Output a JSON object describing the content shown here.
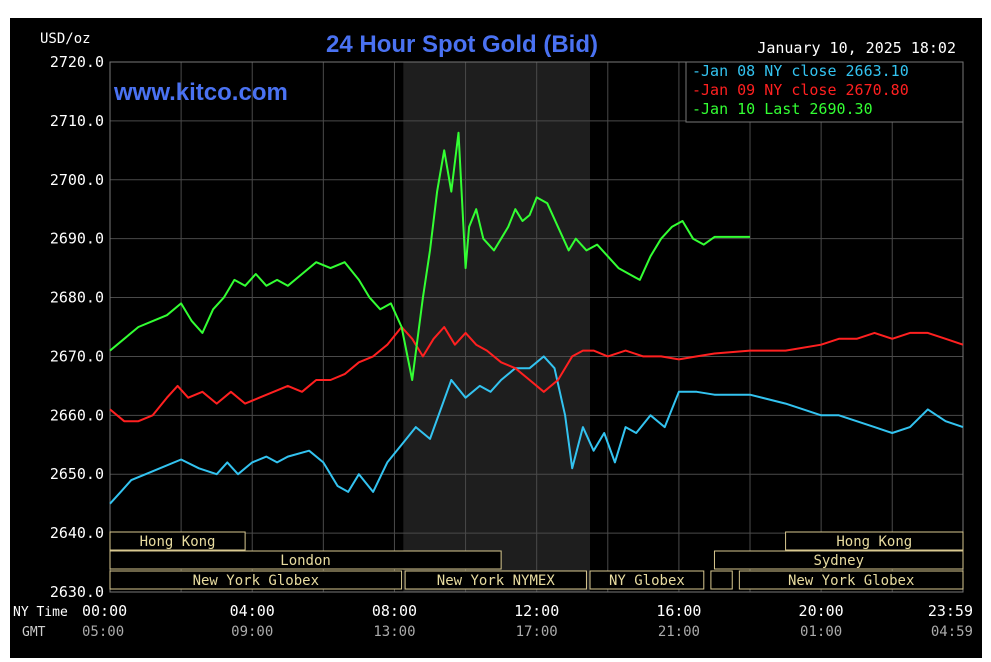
{
  "chart_data": {
    "type": "line",
    "title": "24 Hour Spot Gold (Bid)",
    "unit_label": "USD/oz",
    "watermark": "www.kitco.com",
    "timestamp": "January 10, 2025 18:02",
    "ylim": [
      2630,
      2720
    ],
    "y_ticks": [
      "2720.0",
      "2710.0",
      "2700.0",
      "2690.0",
      "2680.0",
      "2670.0",
      "2660.0",
      "2650.0",
      "2640.0",
      "2630.0"
    ],
    "x_row_labels": {
      "ny": "NY Time",
      "gmt": "GMT"
    },
    "x_ticks_ny": [
      "00:00",
      "04:00",
      "08:00",
      "12:00",
      "16:00",
      "20:00",
      "23:59"
    ],
    "x_ticks_gmt": [
      "05:00",
      "09:00",
      "13:00",
      "17:00",
      "21:00",
      "01:00",
      "04:59"
    ],
    "x_unit": "hours since 00:00 NY time",
    "shaded_window": [
      8.25,
      13.5
    ],
    "legend": [
      {
        "text": "Jan 08 NY close 2663.10",
        "color": "#33c3f0"
      },
      {
        "text": "Jan 09 NY close 2670.80",
        "color": "#ff2020"
      },
      {
        "text": "Jan 10 Last 2690.30",
        "color": "#33ff33"
      }
    ],
    "series": [
      {
        "name": "Jan 08",
        "color": "#33c3f0",
        "x": [
          0,
          0.3,
          0.6,
          1.0,
          1.4,
          2.0,
          2.5,
          3.0,
          3.3,
          3.6,
          4.0,
          4.4,
          4.7,
          5.0,
          5.6,
          6.0,
          6.4,
          6.7,
          7.0,
          7.4,
          7.8,
          8.2,
          8.6,
          9.0,
          9.3,
          9.6,
          10.0,
          10.4,
          10.7,
          11.0,
          11.4,
          11.8,
          12.2,
          12.5,
          12.8,
          13.0,
          13.3,
          13.6,
          13.9,
          14.2,
          14.5,
          14.8,
          15.2,
          15.6,
          16.0,
          16.5,
          17.0,
          18.0,
          19.0,
          19.5,
          20.0,
          20.5,
          21.0,
          21.5,
          22.0,
          22.5,
          23.0,
          23.5,
          23.99
        ],
        "y": [
          2645,
          2647,
          2649,
          2650,
          2651,
          2652.5,
          2651,
          2650,
          2652,
          2650,
          2652,
          2653,
          2652,
          2653,
          2654,
          2652,
          2648,
          2647,
          2650,
          2647,
          2652,
          2655,
          2658,
          2656,
          2661,
          2666,
          2663,
          2665,
          2664,
          2666,
          2668,
          2668,
          2670,
          2668,
          2660,
          2651,
          2658,
          2654,
          2657,
          2652,
          2658,
          2657,
          2660,
          2658,
          2664,
          2664,
          2663.5,
          2663.5,
          2662,
          2661,
          2660,
          2660,
          2659,
          2658,
          2657,
          2658,
          2661,
          2659,
          2658
        ]
      },
      {
        "name": "Jan 09",
        "color": "#ff2020",
        "x": [
          0,
          0.4,
          0.8,
          1.2,
          1.6,
          1.9,
          2.2,
          2.6,
          3.0,
          3.4,
          3.8,
          4.2,
          4.6,
          5.0,
          5.4,
          5.8,
          6.2,
          6.6,
          7.0,
          7.4,
          7.8,
          8.2,
          8.5,
          8.8,
          9.1,
          9.4,
          9.7,
          10.0,
          10.3,
          10.6,
          11.0,
          11.4,
          11.8,
          12.2,
          12.6,
          13.0,
          13.3,
          13.6,
          14.0,
          14.5,
          15.0,
          15.5,
          16.0,
          16.5,
          17.0,
          18.0,
          19.0,
          20.0,
          20.5,
          21.0,
          21.5,
          22.0,
          22.5,
          23.0,
          23.5,
          23.99
        ],
        "y": [
          2661,
          2659,
          2659,
          2660,
          2663,
          2665,
          2663,
          2664,
          2662,
          2664,
          2662,
          2663,
          2664,
          2665,
          2664,
          2666,
          2666,
          2667,
          2669,
          2670,
          2672,
          2675,
          2673,
          2670,
          2673,
          2675,
          2672,
          2674,
          2672,
          2671,
          2669,
          2668,
          2666,
          2664,
          2666,
          2670,
          2671,
          2671,
          2670,
          2671,
          2670,
          2670,
          2669.5,
          2670,
          2670.5,
          2671,
          2671,
          2672,
          2673,
          2673,
          2674,
          2673,
          2674,
          2674,
          2673,
          2672
        ]
      },
      {
        "name": "Jan 10",
        "color": "#33ff33",
        "x": [
          0,
          0.4,
          0.8,
          1.2,
          1.6,
          2.0,
          2.3,
          2.6,
          2.9,
          3.2,
          3.5,
          3.8,
          4.1,
          4.4,
          4.7,
          5.0,
          5.4,
          5.8,
          6.2,
          6.6,
          7.0,
          7.3,
          7.6,
          7.9,
          8.2,
          8.5,
          8.8,
          9.0,
          9.2,
          9.4,
          9.6,
          9.8,
          10.0,
          10.1,
          10.3,
          10.5,
          10.8,
          11.0,
          11.2,
          11.4,
          11.6,
          11.8,
          12.0,
          12.3,
          12.6,
          12.9,
          13.1,
          13.4,
          13.7,
          14.0,
          14.3,
          14.6,
          14.9,
          15.2,
          15.5,
          15.8,
          16.1,
          16.4,
          16.7,
          17.0,
          17.3,
          17.6,
          17.9,
          18.0
        ],
        "y": [
          2671,
          2673,
          2675,
          2676,
          2677,
          2679,
          2676,
          2674,
          2678,
          2680,
          2683,
          2682,
          2684,
          2682,
          2683,
          2682,
          2684,
          2686,
          2685,
          2686,
          2683,
          2680,
          2678,
          2679,
          2675,
          2666,
          2680,
          2688,
          2698,
          2705,
          2698,
          2708,
          2685,
          2692,
          2695,
          2690,
          2688,
          2690,
          2692,
          2695,
          2693,
          2694,
          2697,
          2696,
          2692,
          2688,
          2690,
          2688,
          2689,
          2687,
          2685,
          2684,
          2683,
          2687,
          2690,
          2692,
          2693,
          2690,
          2689,
          2690.3,
          2690.3,
          2690.3,
          2690.3,
          2690.3
        ]
      }
    ],
    "sessions": [
      {
        "label": "Hong Kong",
        "row": 0,
        "start": 0,
        "end": 3.8
      },
      {
        "label": "Hong Kong",
        "row": 0,
        "start": 19.0,
        "end": 23.99
      },
      {
        "label": "London",
        "row": 1,
        "start": 0,
        "end": 11.0
      },
      {
        "label": "Sydney",
        "row": 1,
        "start": 17.0,
        "end": 23.99
      },
      {
        "label": "New York Globex",
        "row": 2,
        "start": 0,
        "end": 8.2
      },
      {
        "label": "New York NYMEX",
        "row": 2,
        "start": 8.3,
        "end": 13.4
      },
      {
        "label": "NY Globex",
        "row": 2,
        "start": 13.5,
        "end": 16.7
      },
      {
        "label": "",
        "row": 2,
        "start": 16.9,
        "end": 17.5
      },
      {
        "label": "New York Globex",
        "row": 2,
        "start": 17.7,
        "end": 23.99
      }
    ]
  }
}
